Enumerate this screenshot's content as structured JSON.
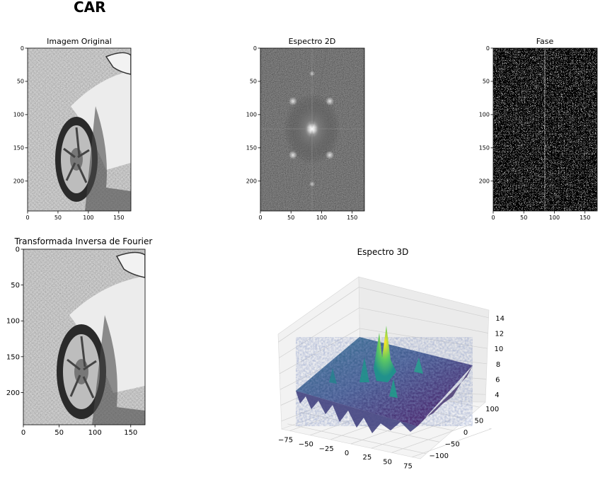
{
  "title": "CAR",
  "colors": {
    "gray_light": "#e8e8e8",
    "gray_dark": "#2a2a2a",
    "viridis_low": "#440154",
    "viridis_mid": "#21918c",
    "viridis_high": "#fde725"
  },
  "chart_data": [
    {
      "type": "heatmap",
      "title": "Imagem Original",
      "xlim": [
        0,
        170
      ],
      "ylim": [
        245,
        0
      ],
      "xticks": [
        "0",
        "50",
        "100",
        "150"
      ],
      "xtick_values": [
        0,
        50,
        100,
        150
      ],
      "yticks": [
        "0",
        "50",
        "100",
        "150",
        "200"
      ],
      "ytick_values": [
        0,
        50,
        100,
        150,
        200
      ],
      "colormap": "gray"
    },
    {
      "type": "heatmap",
      "title": "Espectro 2D",
      "xlim": [
        0,
        170
      ],
      "ylim": [
        245,
        0
      ],
      "xticks": [
        "0",
        "50",
        "100",
        "150"
      ],
      "xtick_values": [
        0,
        50,
        100,
        150
      ],
      "yticks": [
        "0",
        "50",
        "100",
        "150",
        "200"
      ],
      "ytick_values": [
        0,
        50,
        100,
        150,
        200
      ],
      "colormap": "gray"
    },
    {
      "type": "heatmap",
      "title": "Fase",
      "xlim": [
        0,
        170
      ],
      "ylim": [
        245,
        0
      ],
      "xticks": [
        "0",
        "50",
        "100",
        "150"
      ],
      "xtick_values": [
        0,
        50,
        100,
        150
      ],
      "yticks": [
        "0",
        "50",
        "100",
        "150",
        "200"
      ],
      "ytick_values": [
        0,
        50,
        100,
        150,
        200
      ],
      "colormap": "gray"
    },
    {
      "type": "heatmap",
      "title": "Transformada Inversa de Fourier",
      "xlim": [
        0,
        170
      ],
      "ylim": [
        245,
        0
      ],
      "xticks": [
        "0",
        "50",
        "100",
        "150"
      ],
      "xtick_values": [
        0,
        50,
        100,
        150
      ],
      "yticks": [
        "0",
        "50",
        "100",
        "150",
        "200"
      ],
      "ytick_values": [
        0,
        50,
        100,
        150,
        200
      ],
      "colormap": "gray"
    },
    {
      "type": "surface",
      "title": "Espectro 3D",
      "xlim": [
        -85,
        85
      ],
      "ylim": [
        -122,
        122
      ],
      "zlim": [
        3,
        15
      ],
      "xticks": [
        "−75",
        "−50",
        "−25",
        "0",
        "25",
        "50",
        "75"
      ],
      "xtick_values": [
        -75,
        -50,
        -25,
        0,
        25,
        50,
        75
      ],
      "yticks": [
        "−100",
        "−50",
        "0",
        "50",
        "100"
      ],
      "ytick_values": [
        -100,
        -50,
        0,
        50,
        100
      ],
      "zticks": [
        "4",
        "6",
        "8",
        "10",
        "12",
        "14"
      ],
      "ztick_values": [
        4,
        6,
        8,
        10,
        12,
        14
      ],
      "colormap": "viridis"
    }
  ]
}
